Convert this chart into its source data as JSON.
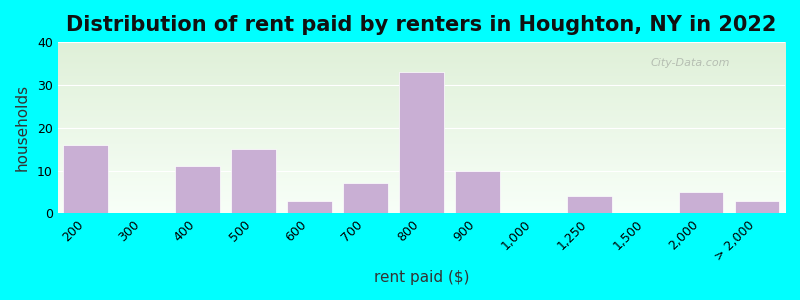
{
  "title": "Distribution of rent paid by renters in Houghton, NY in 2022",
  "xlabel": "rent paid ($)",
  "ylabel": "households",
  "bar_labels": [
    "200",
    "300",
    "400",
    "500",
    "600",
    "700",
    "800",
    "900",
    "1,000",
    "1,250",
    "1,500",
    "2,000",
    "> 2,000"
  ],
  "bar_values": [
    16,
    0,
    11,
    15,
    3,
    7,
    33,
    10,
    0,
    4,
    0,
    5,
    3
  ],
  "bar_color": "#c9afd4",
  "ylim": [
    0,
    40
  ],
  "yticks": [
    0,
    10,
    20,
    30,
    40
  ],
  "bg_outer": "#00ffff",
  "bg_inner_top": "#dff0d8",
  "bg_inner_bottom": "#f8fff8",
  "title_fontsize": 15,
  "axis_label_fontsize": 11,
  "tick_fontsize": 9,
  "watermark": "City-Data.com"
}
